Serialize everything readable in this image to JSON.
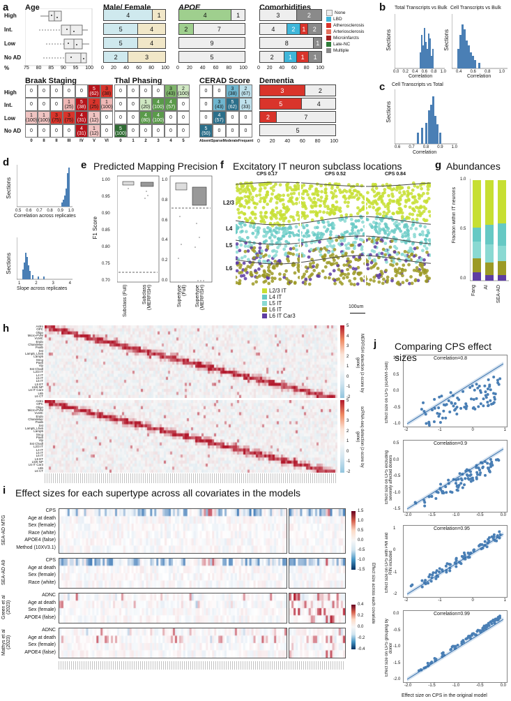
{
  "panel_letters": [
    "a",
    "b",
    "c",
    "d",
    "e",
    "f",
    "g",
    "h",
    "i",
    "j"
  ],
  "a": {
    "age_title": "Age",
    "groups": [
      "High",
      "Int.",
      "Low",
      "No AD"
    ],
    "age_axis_label": "%",
    "age_ticks": [
      "75",
      "80",
      "85",
      "90",
      "95",
      "100"
    ],
    "pct_ticks": [
      "0",
      "20",
      "40",
      "60",
      "80",
      "100"
    ],
    "sex_title": "Male/ Female",
    "sex_rows": [
      [
        "4",
        "1"
      ],
      [
        "5",
        "4"
      ],
      [
        "5",
        "4"
      ],
      [
        "2",
        "3"
      ]
    ],
    "apoe_title": "APOE",
    "apoe_rows": [
      [
        "4",
        "1"
      ],
      [
        "2",
        "7"
      ],
      [
        "9"
      ],
      [
        "5"
      ]
    ],
    "comorb_title": "Comorbidities",
    "comorb_rows": [
      [
        "3",
        "2"
      ],
      [
        "4",
        "2",
        "1",
        "2"
      ],
      [
        "8",
        "1"
      ],
      [
        "2",
        "1",
        "1",
        "1"
      ]
    ],
    "comorb_legend": [
      "None",
      "LBD",
      "Atherosclerosis",
      "Arteriosclerosis",
      "Microinfarcts",
      "Late-NC",
      "Multiple"
    ],
    "comorb_colors": [
      "#eeeeee",
      "#3fb6d9",
      "#d9342b",
      "#e4735f",
      "#a01d1d",
      "#2f7d3a",
      "#8a8a8a"
    ],
    "braak_title": "Braak Staging",
    "braak_ticks": [
      "0",
      "II",
      "II",
      "III",
      "IV",
      "V",
      "VI"
    ],
    "braak_cells": [
      [
        "0",
        "0",
        "0",
        "0",
        "0",
        "5|(62)",
        "3|(38)"
      ],
      [
        "0",
        "0",
        "0",
        "1|(25)",
        "5|(38)",
        "2|(25)",
        "1|(100)"
      ],
      [
        "1|(100)",
        "1|(100)",
        "3|(75)",
        "3|(75)",
        "4|(31)",
        "1|(12)",
        "0"
      ],
      [
        "0",
        "0",
        "0",
        "0",
        "4|(31)",
        "1|(12)",
        "0"
      ]
    ],
    "thal_title": "Thal Phasing",
    "thal_ticks": [
      "0",
      "1",
      "2",
      "3",
      "4",
      "5"
    ],
    "thal_cells": [
      [
        "0",
        "0",
        "0",
        "0",
        "3|(43)",
        "2|(100)"
      ],
      [
        "0",
        "0",
        "1|(20)",
        "4|(100)",
        "4|(57)",
        "0"
      ],
      [
        "0",
        "0",
        "4|(80)",
        "4|(100)",
        "0",
        "0"
      ],
      [
        "5|(100)",
        "0",
        "0",
        "0",
        "0",
        "0"
      ]
    ],
    "cerad_title": "CERAD Score",
    "cerad_ticks": [
      "Absent",
      "Sparse",
      "Moderate",
      "Frequent"
    ],
    "cerad_cells": [
      [
        "0",
        "0",
        "3|(38)",
        "2|(67)"
      ],
      [
        "0",
        "3|(43)",
        "5|(62)",
        "1|(33)"
      ],
      [
        "0",
        "4|(57)",
        "0",
        "0"
      ],
      [
        "5|(50)",
        "0",
        "0",
        "0"
      ]
    ],
    "dementia_title": "Dementia",
    "dementia_rows": [
      [
        "3",
        "2"
      ],
      [
        "5",
        "4"
      ],
      [
        "2",
        "7"
      ],
      [
        "5"
      ]
    ]
  },
  "b": {
    "left_title": "Total Transcripts vs Bulk",
    "right_title": "Cell Transcripts vs Bulk",
    "ylabel": "Sections",
    "xlabel": "Correlation",
    "left_ticks": [
      "0.0",
      "0.2",
      "0.4",
      "0.6",
      "0.8",
      "1.0"
    ],
    "right_ticks": [
      "0.4",
      "0.6",
      "0.8",
      "1.0"
    ]
  },
  "c": {
    "title": "Cell Transcripts vs Total",
    "ylabel": "Sections",
    "xlabel": "Correlation",
    "ticks": [
      "0.6",
      "0.7",
      "0.8",
      "0.9",
      "1.0"
    ]
  },
  "d": {
    "ylabel": "Sections",
    "top_xlabel": "Correlation across replicates",
    "top_ticks": [
      "0.5",
      "0.6",
      "0.7",
      "0.8",
      "0.9",
      "1.0"
    ],
    "bottom_xlabel": "Slope across replicates",
    "bottom_ticks": [
      "1",
      "2",
      "3",
      "4"
    ]
  },
  "e": {
    "title": "Predicted Mapping Precision",
    "ylabel": "F1 Score",
    "left_yticks": [
      "1.00",
      "0.95",
      "0.90",
      "0.85",
      "0.80",
      "0.75",
      "0.70"
    ],
    "right_yticks": [
      "1.0",
      "0.8",
      "0.6",
      "0.4",
      "0.2",
      "0.0"
    ],
    "cats": [
      "Subclass (Full)",
      "Subclass (MERFISH)",
      "Supertype (Full)",
      "Supertype (MERFISH)"
    ]
  },
  "f": {
    "title": "Excitatory IT neuron subclass locations",
    "cps": [
      "CPS 0.17",
      "CPS 0.52",
      "CPS 0.84"
    ],
    "layers": [
      "L2/3",
      "L4",
      "L5",
      "L6"
    ],
    "legend": [
      "L2/3 IT",
      "L4 IT",
      "L5 IT",
      "L6 IT",
      "L6 IT Car3"
    ],
    "colors": [
      "#c7df32",
      "#66c9c4",
      "#8ad9d2",
      "#9c9a25",
      "#5e3da3"
    ],
    "scale": "100um"
  },
  "g": {
    "title": "Abundances",
    "ylabel": "Fraction within IT neurons",
    "yticks": [
      "0.0",
      "0.5",
      "1.0"
    ],
    "cats": [
      "Fang",
      "AI",
      "SEA-AD"
    ]
  },
  "h": {
    "top_label": "MERFISH detection (z-score by gene)",
    "bottom_label": "scRNA-seq detection (z-score by gene)",
    "cbar_ticks": [
      "5",
      "4",
      "3",
      "2",
      "1",
      "0",
      "-1",
      "-2"
    ],
    "cbar_ticks_b": [
      "5",
      "4",
      "3",
      "2",
      "1",
      "0",
      "-1",
      "-2"
    ],
    "row_labels": [
      "Astro",
      "OPC",
      "Oligo",
      "Micro-PVM",
      "VLMC",
      "Endo",
      "Chandelier",
      "Pvalb",
      "Sst",
      "Lamp5_Lhx6",
      "Lamp5",
      "Sncg",
      "Pax6",
      "Vip",
      "Sst Chodl",
      "L2/3 IT",
      "L4 IT",
      "L5 IT",
      "L6 IT",
      "L5 ET",
      "L5/6 NP",
      "L6 IT Car3",
      "L6b",
      "L6 CT"
    ]
  },
  "i": {
    "title": "Effect sizes for each supertype across all covariates in the models",
    "groups": [
      {
        "name": "SEA-AD MTG",
        "rows": [
          "CPS",
          "Age at death",
          "Sex (female)",
          "Race (white)",
          "APOE4 (false)",
          "Method (10XV3.1)"
        ]
      },
      {
        "name": "SEA-AD A9",
        "rows": [
          "CPS",
          "Age at death",
          "Sex (female)",
          "Race (white)"
        ]
      },
      {
        "name": "Green et al (2023)",
        "rows": [
          "ADNC",
          "Age at death",
          "Sex (female)",
          "APOE4 (false)"
        ]
      },
      {
        "name": "Mathys et al (2023)",
        "rows": [
          "ADNC",
          "Age at death",
          "Sex (female)",
          "APOE4 (false)"
        ]
      }
    ],
    "cbar1_ticks": [
      "1.5",
      "1.0",
      "0.5",
      "0.0",
      "-0.5",
      "-1.0",
      "-1.5"
    ],
    "cbar2_ticks": [
      "0.4",
      "0.2",
      "0.0",
      "-0.2",
      "-0.4"
    ],
    "cbar_label": "Effect size across each covariate"
  },
  "j": {
    "title": "Comparing CPS effect sizes",
    "plots": [
      {
        "corr": "Correlation=0.8",
        "ylabel": "Effect size on CPS (scANVI-Sed)",
        "xticks": [
          "-2",
          "-1",
          "0",
          "1"
        ],
        "yticks": [
          "1.0",
          "0.5",
          "0.0",
          "-0.5",
          "-1.0"
        ]
      },
      {
        "corr": "Correlation=0.9",
        "ylabel": "Effect size on CPS excluding severely affected donors",
        "xticks": [
          "-2.0",
          "-1.5",
          "-1.0",
          "-0.5",
          "0.0"
        ],
        "yticks": [
          "0.5",
          "0.0",
          "-0.5",
          "-1.0",
          "-1.5"
        ]
      },
      {
        "corr": "Correlation=0.95",
        "ylabel": "Effect size on CPS with PMI and RIN included",
        "xticks": [
          "-2",
          "-1",
          "0",
          "1"
        ],
        "yticks": [
          "1",
          "0",
          "-1",
          "-2"
        ]
      },
      {
        "corr": "Correlation=0.99",
        "ylabel": "Effect size on CPS grouping by donor",
        "xticks": [
          "-2.0",
          "-1.5",
          "-1.0",
          "-0.5",
          "0.0"
        ],
        "yticks": [
          "0.0",
          "-0.5",
          "-1.0",
          "-1.5",
          "-2.0"
        ]
      }
    ],
    "xlabel": "Effect size on CPS in the original model"
  }
}
